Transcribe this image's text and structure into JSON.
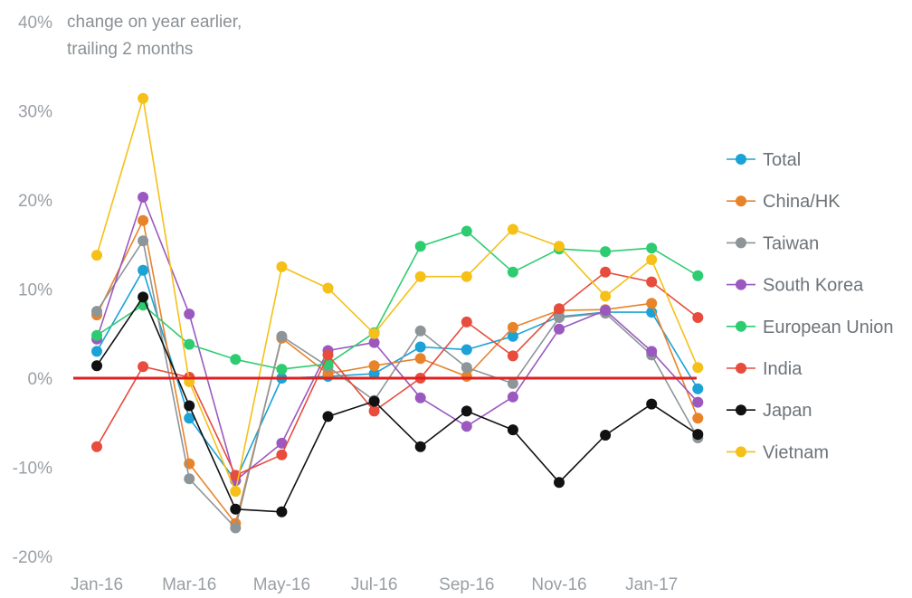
{
  "chart_data": {
    "type": "line",
    "title": "",
    "subtitle_lines": [
      "change on year earlier,",
      "trailing 2 months"
    ],
    "xlabel": "",
    "ylabel": "",
    "x": [
      "Jan-16",
      "Feb-16",
      "Mar-16",
      "Apr-16",
      "May-16",
      "Jun-16",
      "Jul-16",
      "Aug-16",
      "Sep-16",
      "Oct-16",
      "Nov-16",
      "Dec-16",
      "Jan-17",
      "Feb-17"
    ],
    "x_tick_labels": [
      "Jan-16",
      "Mar-16",
      "May-16",
      "Jul-16",
      "Sep-16",
      "Nov-16",
      "Jan-17"
    ],
    "x_tick_indices": [
      0,
      2,
      4,
      6,
      8,
      10,
      12
    ],
    "y_ticks": [
      40,
      30,
      20,
      10,
      0,
      -10,
      -20
    ],
    "y_tick_labels": [
      "40%",
      "30%",
      "20%",
      "10%",
      "0%",
      "-10%",
      "-20%"
    ],
    "ylim": [
      -20,
      40
    ],
    "zero_line_color": "#e02020",
    "legend_position": "right",
    "series": [
      {
        "name": "Total",
        "color": "#1ba2d6",
        "values": [
          3.0,
          12.1,
          -4.5,
          -11.5,
          0.0,
          0.2,
          0.5,
          3.5,
          3.2,
          4.7,
          6.9,
          7.4,
          7.4,
          -1.2
        ]
      },
      {
        "name": "China/HK",
        "color": "#e8832a",
        "values": [
          7.1,
          17.7,
          -9.6,
          -16.3,
          4.5,
          0.5,
          1.4,
          2.2,
          0.2,
          5.7,
          7.6,
          7.7,
          8.4,
          -4.5
        ]
      },
      {
        "name": "Taiwan",
        "color": "#8d9599",
        "values": [
          7.5,
          15.4,
          -11.3,
          -16.8,
          4.7,
          1.3,
          -2.5,
          5.3,
          1.2,
          -0.6,
          6.8,
          7.3,
          2.6,
          -6.7
        ]
      },
      {
        "name": "South Korea",
        "color": "#9b59c0",
        "values": [
          4.4,
          20.3,
          7.2,
          -11.5,
          -7.3,
          3.1,
          4.0,
          -2.2,
          -5.4,
          -2.1,
          5.5,
          7.6,
          3.0,
          -2.7
        ]
      },
      {
        "name": "European Union",
        "color": "#2ecc71",
        "values": [
          4.8,
          8.2,
          3.8,
          2.1,
          1.0,
          1.6,
          5.1,
          14.8,
          16.5,
          11.9,
          14.5,
          14.2,
          14.6,
          11.5
        ]
      },
      {
        "name": "India",
        "color": "#e74c3c",
        "values": [
          -7.7,
          1.3,
          0.1,
          -10.9,
          -8.6,
          2.6,
          -3.7,
          0.0,
          6.3,
          2.5,
          7.8,
          11.9,
          10.8,
          6.8
        ]
      },
      {
        "name": "Japan",
        "color": "#111111",
        "values": [
          1.4,
          9.1,
          -3.1,
          -14.7,
          -15.0,
          -4.3,
          -2.6,
          -7.7,
          -3.7,
          -5.8,
          -11.7,
          -6.4,
          -2.9,
          -6.3
        ]
      },
      {
        "name": "Vietnam",
        "color": "#f5c018",
        "values": [
          13.8,
          31.4,
          -0.4,
          -12.7,
          12.5,
          10.1,
          5.0,
          11.4,
          11.4,
          16.7,
          14.8,
          9.2,
          13.3,
          1.2
        ]
      }
    ]
  }
}
